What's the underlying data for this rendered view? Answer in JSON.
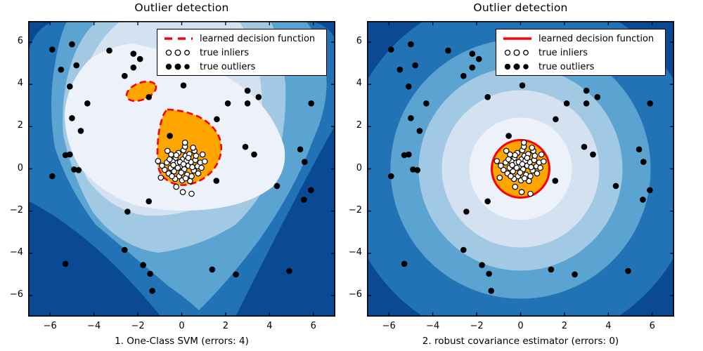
{
  "figure": {
    "background": "#ffffff"
  },
  "palette": {
    "contour_bands": [
      "#0a4a94",
      "#2272b6",
      "#5ba3d0",
      "#a2c9e3",
      "#d4e1f1",
      "#edf2fa"
    ],
    "inlier_region": "#ffa500",
    "decision_boundary": "#fb0006",
    "outlier_marker": "#000000",
    "inlier_marker_fill": "#ffffff",
    "inlier_marker_edge": "#000000",
    "axes_edge": "#000000",
    "text": "#000000"
  },
  "chart_data": {
    "type": "contourf-scatter",
    "description": "Outlier detection comparison: filled blue contour levels of each decision function, orange = learned inlier region bounded by red decision boundary, with true inliers (white) and true outliers (black) scattered on top.",
    "xlim": [
      -7,
      7
    ],
    "ylim": [
      -7,
      7
    ],
    "xticks": [
      -6,
      -4,
      -2,
      0,
      2,
      4,
      6
    ],
    "yticks": [
      -6,
      -4,
      -2,
      0,
      2,
      4,
      6
    ],
    "grid": false,
    "legend": {
      "position": "upper right",
      "entries": [
        {
          "label": "learned decision function",
          "marker": "red-line"
        },
        {
          "label": "true inliers",
          "marker": "open-circle-x3"
        },
        {
          "label": "true outliers",
          "marker": "filled-circle-x3"
        }
      ]
    },
    "series": {
      "inliers": {
        "name": "true inliers",
        "points": [
          [
            -0.05,
            0.12
          ],
          [
            0.12,
            -0.02
          ],
          [
            -0.22,
            0.28
          ],
          [
            0.3,
            0.15
          ],
          [
            -0.35,
            -0.12
          ],
          [
            0.05,
            0.45
          ],
          [
            0.42,
            0.32
          ],
          [
            -0.5,
            0.05
          ],
          [
            0.18,
            0.62
          ],
          [
            -0.12,
            -0.35
          ],
          [
            0.55,
            -0.08
          ],
          [
            -0.28,
            0.52
          ],
          [
            0.08,
            0.88
          ],
          [
            0.35,
            0.7
          ],
          [
            -0.42,
            0.35
          ],
          [
            0.62,
            0.42
          ],
          [
            -0.15,
            0.75
          ],
          [
            0.25,
            -0.28
          ],
          [
            -0.6,
            -0.22
          ],
          [
            0.45,
            -0.35
          ],
          [
            0.72,
            0.12
          ],
          [
            -0.68,
            0.3
          ],
          [
            0.02,
            -0.55
          ],
          [
            -0.3,
            -0.48
          ],
          [
            0.58,
            0.85
          ],
          [
            0.15,
            1.05
          ],
          [
            -0.48,
            0.68
          ],
          [
            0.85,
            0.3
          ],
          [
            -0.78,
            -0.05
          ],
          [
            0.38,
            -0.58
          ],
          [
            -0.08,
            0.32
          ],
          [
            0.22,
            0.38
          ],
          [
            -0.18,
            0.05
          ],
          [
            0.48,
            0.08
          ],
          [
            -0.38,
            0.18
          ],
          [
            0.08,
            0.22
          ],
          [
            0.3,
            0.52
          ],
          [
            -0.25,
            0.65
          ],
          [
            0.65,
            0.62
          ],
          [
            -0.55,
            0.45
          ],
          [
            0.9,
            0.05
          ],
          [
            -0.02,
            -0.18
          ],
          [
            0.18,
            -0.45
          ],
          [
            -0.45,
            -0.35
          ],
          [
            0.75,
            -0.22
          ],
          [
            1.05,
            0.35
          ],
          [
            -0.9,
            0.15
          ],
          [
            0.52,
            1.0
          ],
          [
            -0.65,
            0.85
          ],
          [
            0.95,
            0.68
          ],
          [
            0.15,
            1.24
          ],
          [
            -1.08,
            0.37
          ],
          [
            -0.95,
            -0.42
          ],
          [
            -0.25,
            -0.85
          ],
          [
            0.05,
            -1.1
          ],
          [
            0.45,
            -1.18
          ]
        ]
      },
      "outliers": {
        "name": "true outliers",
        "points": [
          [
            -5.9,
            5.65
          ],
          [
            -5.0,
            5.9
          ],
          [
            -3.3,
            5.6
          ],
          [
            -2.2,
            5.45
          ],
          [
            -1.9,
            5.2
          ],
          [
            -5.5,
            4.7
          ],
          [
            -4.8,
            4.9
          ],
          [
            -2.2,
            4.8
          ],
          [
            -2.6,
            4.4
          ],
          [
            -5.1,
            3.9
          ],
          [
            0.08,
            3.95
          ],
          [
            -4.3,
            3.1
          ],
          [
            -5.0,
            2.4
          ],
          [
            -4.6,
            1.8
          ],
          [
            -5.3,
            0.65
          ],
          [
            -5.1,
            0.68
          ],
          [
            -4.9,
            -0.03
          ],
          [
            -4.7,
            -0.06
          ],
          [
            -5.9,
            -0.35
          ],
          [
            -1.5,
            3.4
          ],
          [
            -0.54,
            1.56
          ],
          [
            3.0,
            3.7
          ],
          [
            3.5,
            3.4
          ],
          [
            3.0,
            3.1
          ],
          [
            2.1,
            3.1
          ],
          [
            5.9,
            3.1
          ],
          [
            1.6,
            2.35
          ],
          [
            2.9,
            1.04
          ],
          [
            3.3,
            0.68
          ],
          [
            5.4,
            0.92
          ],
          [
            5.6,
            0.33
          ],
          [
            -1.5,
            -1.54
          ],
          [
            -2.47,
            -2.03
          ],
          [
            -2.6,
            -3.84
          ],
          [
            -5.3,
            -4.5
          ],
          [
            -1.76,
            -4.56
          ],
          [
            -1.44,
            -4.97
          ],
          [
            -1.34,
            -5.78
          ],
          [
            1.58,
            -0.57
          ],
          [
            4.34,
            -0.81
          ],
          [
            5.89,
            -1.01
          ],
          [
            5.57,
            -1.46
          ],
          [
            1.39,
            -4.77
          ],
          [
            2.47,
            -5.0
          ],
          [
            4.9,
            -4.84
          ]
        ]
      }
    },
    "subplots": [
      {
        "title": "Outlier detection",
        "xlabel": "1. One-Class SVM (errors: 4)",
        "decision_function_style": "dashed"
      },
      {
        "title": "Outlier detection",
        "xlabel": "2. robust covariance estimator (errors: 0)",
        "decision_function_style": "solid"
      }
    ]
  }
}
